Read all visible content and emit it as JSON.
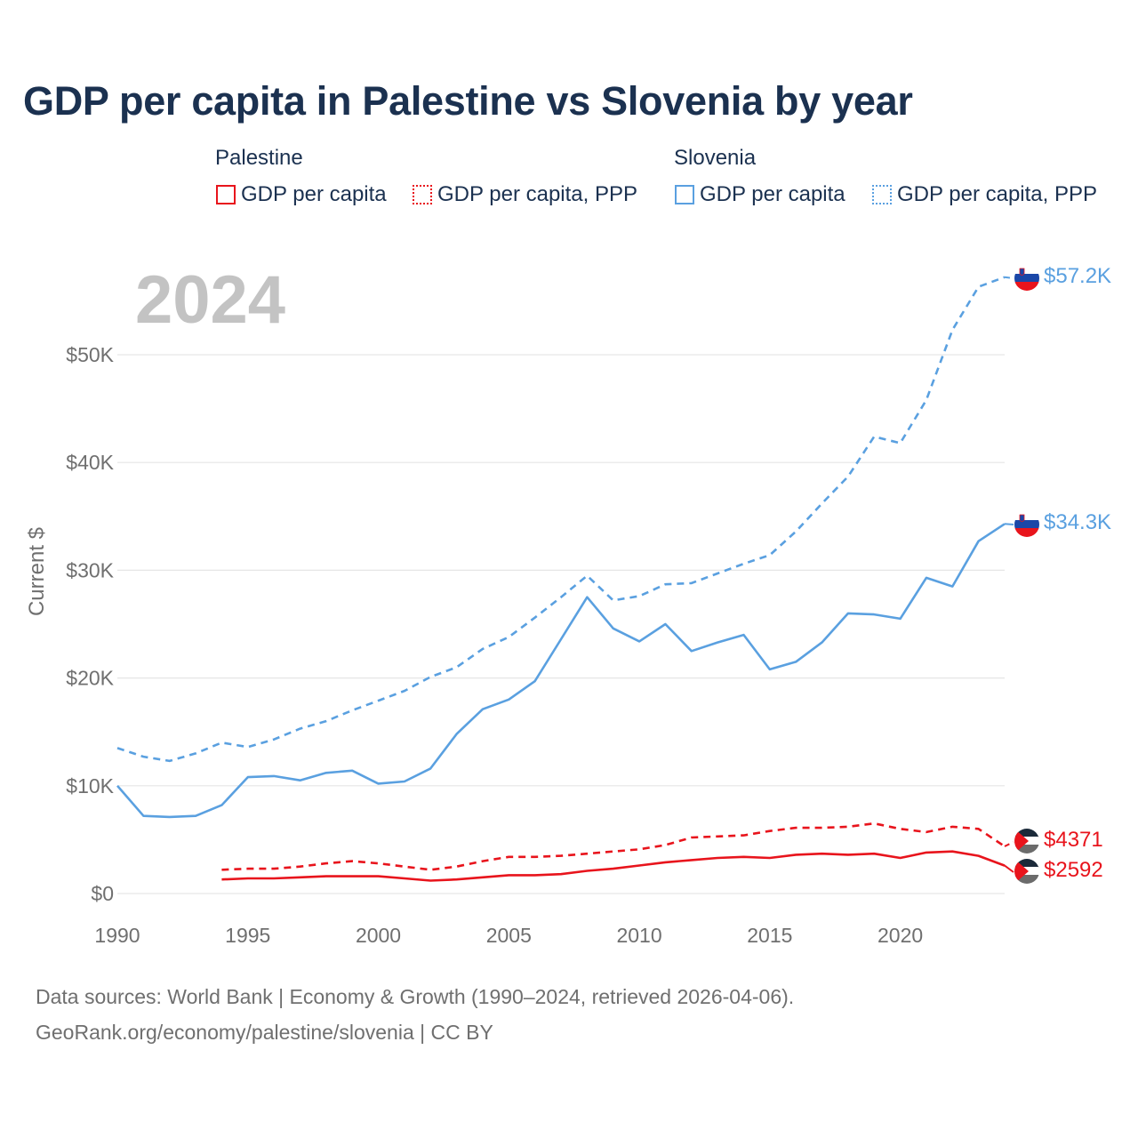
{
  "title": "GDP per capita in Palestine vs Slovenia by year",
  "legend": {
    "palestine_title": "Palestine",
    "slovenia_title": "Slovenia",
    "gdp_label": "GDP per capita",
    "ppp_label": "GDP per capita, PPP"
  },
  "year_watermark": "2024",
  "footer": {
    "line1": "Data sources: World Bank | Economy & Growth (1990–2024, retrieved 2026-04-06).",
    "line2": "GeoRank.org/economy/palestine/slovenia | CC BY"
  },
  "colors": {
    "palestine": "#e8141c",
    "slovenia": "#5aa0e0",
    "grid": "#e6e6e6",
    "axis_text": "#6f6f6f"
  },
  "chart_data": {
    "type": "line",
    "title": "GDP per capita in Palestine vs Slovenia by year",
    "xlabel": "",
    "ylabel": "Current $",
    "xlim": [
      1990,
      2024
    ],
    "ylim": [
      0,
      57500
    ],
    "x_ticks": [
      1990,
      1995,
      2000,
      2005,
      2010,
      2015,
      2020
    ],
    "x_tick_labels": [
      "1990",
      "1995",
      "2000",
      "2005",
      "2010",
      "2015",
      "2020"
    ],
    "y_ticks": [
      0,
      10000,
      20000,
      30000,
      40000,
      50000
    ],
    "y_tick_labels": [
      "$0",
      "$10K",
      "$20K",
      "$30K",
      "$40K",
      "$50K"
    ],
    "series": [
      {
        "name": "Slovenia GDP per capita, PPP",
        "country": "slovenia",
        "dashed": true,
        "end_label": "$57.2K",
        "x": [
          1990,
          1991,
          1992,
          1993,
          1994,
          1995,
          1996,
          1997,
          1998,
          1999,
          2000,
          2001,
          2002,
          2003,
          2004,
          2005,
          2006,
          2007,
          2008,
          2009,
          2010,
          2011,
          2012,
          2013,
          2014,
          2015,
          2016,
          2017,
          2018,
          2019,
          2020,
          2021,
          2022,
          2023,
          2024
        ],
        "values": [
          13500,
          12700,
          12300,
          13000,
          14000,
          13600,
          14300,
          15300,
          16000,
          17000,
          17900,
          18800,
          20100,
          21000,
          22700,
          23800,
          25600,
          27500,
          29500,
          27200,
          27600,
          28700,
          28800,
          29700,
          30600,
          31400,
          33600,
          36200,
          38700,
          42400,
          41800,
          45800,
          52300,
          56300,
          57200
        ]
      },
      {
        "name": "Slovenia GDP per capita",
        "country": "slovenia",
        "dashed": false,
        "end_label": "$34.3K",
        "x": [
          1990,
          1991,
          1992,
          1993,
          1994,
          1995,
          1996,
          1997,
          1998,
          1999,
          2000,
          2001,
          2002,
          2003,
          2004,
          2005,
          2006,
          2007,
          2008,
          2009,
          2010,
          2011,
          2012,
          2013,
          2014,
          2015,
          2016,
          2017,
          2018,
          2019,
          2020,
          2021,
          2022,
          2023,
          2024
        ],
        "values": [
          10000,
          7200,
          7100,
          7200,
          8200,
          10800,
          10900,
          10500,
          11200,
          11400,
          10200,
          10400,
          11600,
          14800,
          17100,
          18000,
          19700,
          23600,
          27500,
          24600,
          23400,
          25000,
          22500,
          23300,
          24000,
          20800,
          21500,
          23300,
          26000,
          25900,
          25500,
          29300,
          28500,
          32700,
          34300
        ]
      },
      {
        "name": "Palestine GDP per capita, PPP",
        "country": "palestine",
        "dashed": true,
        "end_label": "$4371",
        "x": [
          1994,
          1995,
          1996,
          1997,
          1998,
          1999,
          2000,
          2001,
          2002,
          2003,
          2004,
          2005,
          2006,
          2007,
          2008,
          2009,
          2010,
          2011,
          2012,
          2013,
          2014,
          2015,
          2016,
          2017,
          2018,
          2019,
          2020,
          2021,
          2022,
          2023,
          2024
        ],
        "values": [
          2200,
          2300,
          2300,
          2500,
          2800,
          3000,
          2800,
          2500,
          2200,
          2500,
          3000,
          3400,
          3400,
          3500,
          3700,
          3900,
          4100,
          4500,
          5200,
          5300,
          5400,
          5800,
          6100,
          6100,
          6200,
          6500,
          6000,
          5700,
          6200,
          6000,
          4371
        ]
      },
      {
        "name": "Palestine GDP per capita",
        "country": "palestine",
        "dashed": false,
        "end_label": "$2592",
        "x": [
          1994,
          1995,
          1996,
          1997,
          1998,
          1999,
          2000,
          2001,
          2002,
          2003,
          2004,
          2005,
          2006,
          2007,
          2008,
          2009,
          2010,
          2011,
          2012,
          2013,
          2014,
          2015,
          2016,
          2017,
          2018,
          2019,
          2020,
          2021,
          2022,
          2023,
          2024
        ],
        "values": [
          1300,
          1400,
          1400,
          1500,
          1600,
          1600,
          1600,
          1400,
          1200,
          1300,
          1500,
          1700,
          1700,
          1800,
          2100,
          2300,
          2600,
          2900,
          3100,
          3300,
          3400,
          3300,
          3600,
          3700,
          3600,
          3700,
          3300,
          3800,
          3900,
          3500,
          2592
        ]
      }
    ]
  }
}
